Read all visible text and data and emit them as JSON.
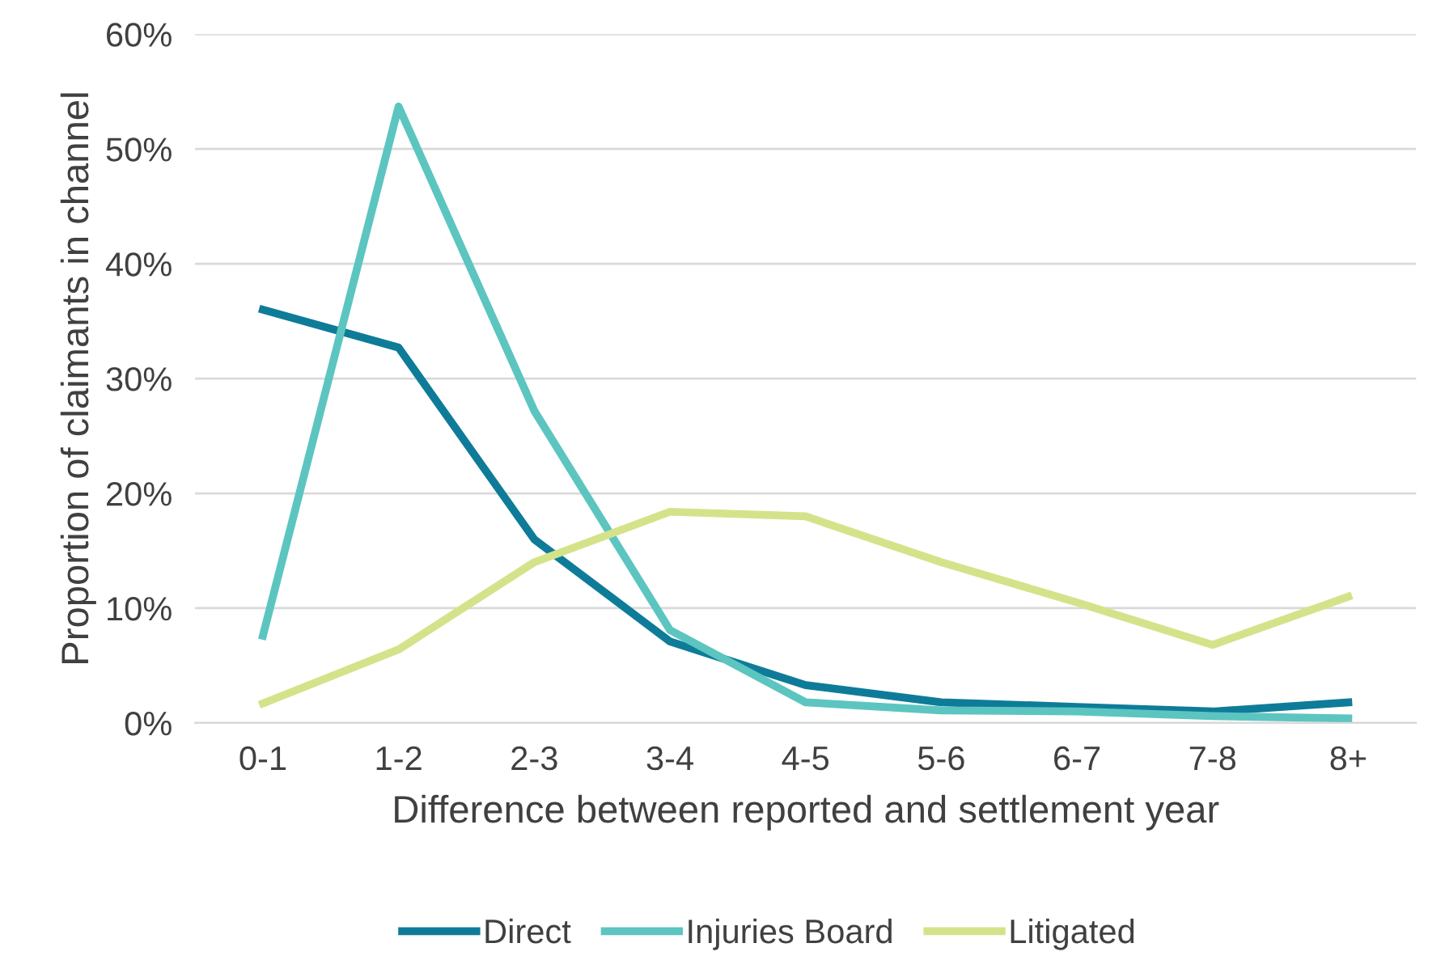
{
  "chart_data": {
    "type": "line",
    "xlabel": "Difference between reported and settlement year",
    "ylabel": "Proportion of claimants in channel",
    "categories": [
      "0-1",
      "1-2",
      "2-3",
      "3-4",
      "4-5",
      "5-6",
      "6-7",
      "7-8",
      "8+"
    ],
    "series": [
      {
        "name": "Direct",
        "color": "#0e7c99",
        "values": [
          36.0,
          32.7,
          16.0,
          7.1,
          3.3,
          1.8,
          1.4,
          1.0,
          1.8
        ]
      },
      {
        "name": "Injuries Board",
        "color": "#5cc5c0",
        "values": [
          7.6,
          53.7,
          27.2,
          8.1,
          1.8,
          1.1,
          1.0,
          0.6,
          0.4
        ]
      },
      {
        "name": "Litigated",
        "color": "#d4e38a",
        "values": [
          1.7,
          6.4,
          14.0,
          18.4,
          18.0,
          14.0,
          10.5,
          6.8,
          11.0
        ]
      }
    ],
    "ylim": [
      0,
      60
    ],
    "yticks": [
      {
        "value": 0,
        "label": "0%"
      },
      {
        "value": 10,
        "label": "10%"
      },
      {
        "value": 20,
        "label": "20%"
      },
      {
        "value": 30,
        "label": "30%"
      },
      {
        "value": 40,
        "label": "40%"
      },
      {
        "value": 50,
        "label": "50%"
      },
      {
        "value": 60,
        "label": "60%"
      }
    ],
    "grid": "y",
    "legend": "bottom",
    "marker": "none",
    "line_style": "solid"
  }
}
